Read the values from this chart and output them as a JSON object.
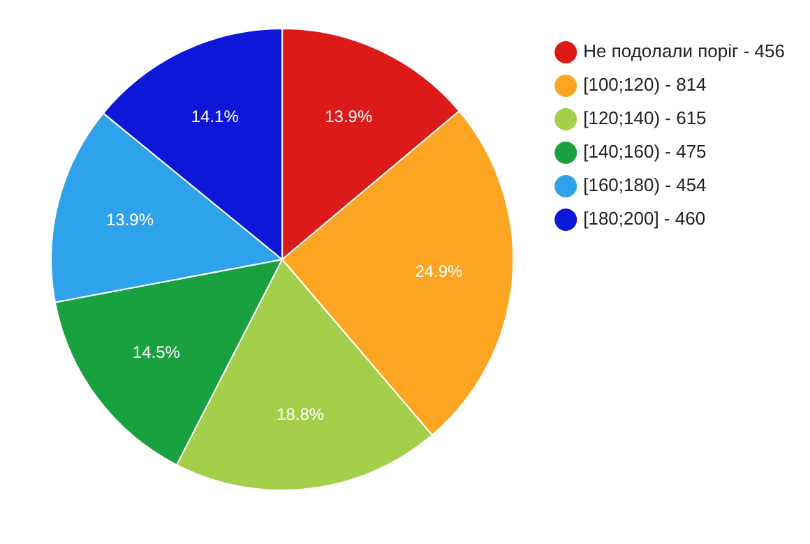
{
  "chart_data": {
    "type": "pie",
    "categories": [
      "Не подолали поріг - 456",
      "[100;120) - 814",
      "[120;140) - 615",
      "[140;160) - 475",
      "[160;180) - 454",
      "[180;200] - 460"
    ],
    "values": [
      13.9,
      24.9,
      18.8,
      14.5,
      13.9,
      14.1
    ],
    "colors": [
      "#dc1a1a",
      "#fba523",
      "#a4cf4a",
      "#19a03f",
      "#2ea2ea",
      "#0c17d8"
    ],
    "value_labels": [
      "13.9%",
      "24.9%",
      "18.8%",
      "14.5%",
      "13.9%",
      "14.1%"
    ],
    "legend": "top right"
  }
}
